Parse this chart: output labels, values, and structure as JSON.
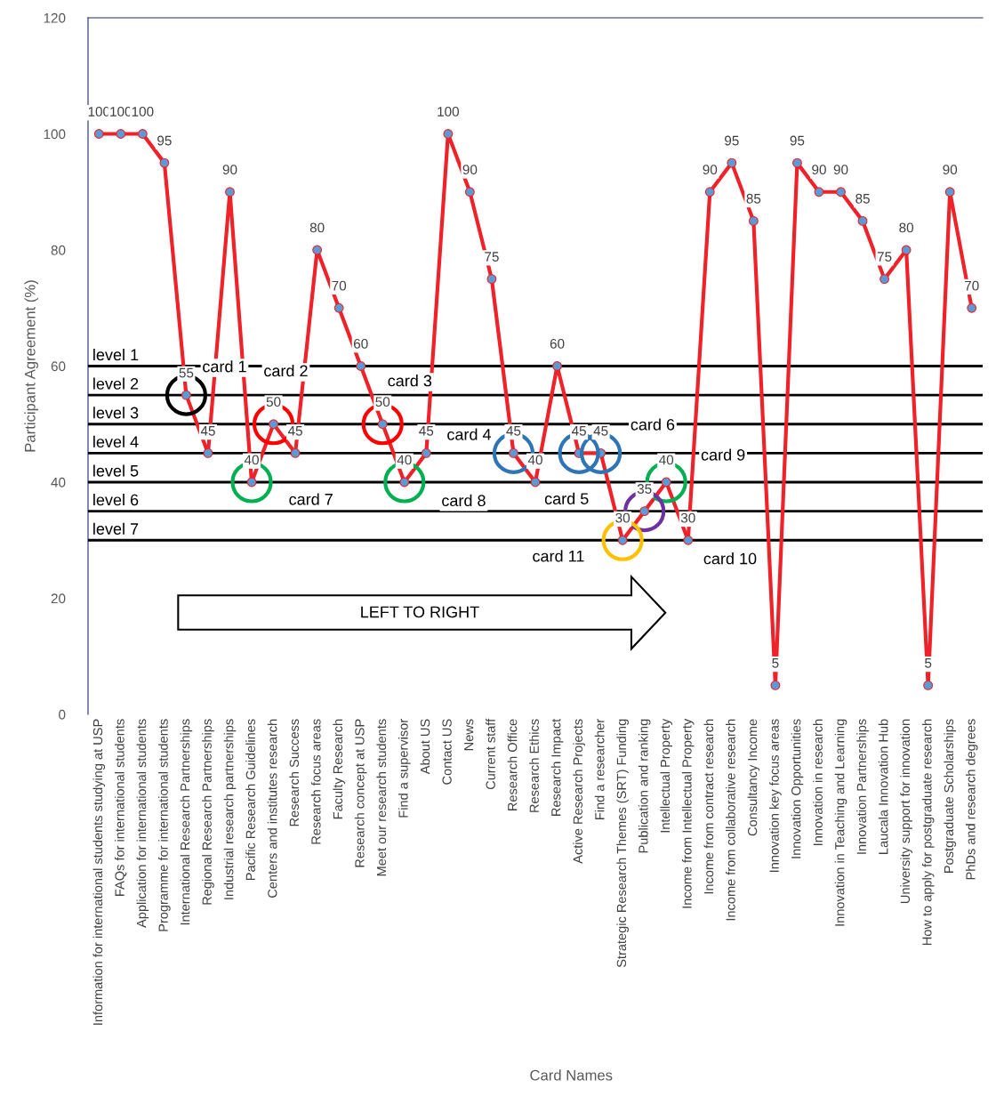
{
  "chart_data": {
    "type": "line",
    "xlabel": "Card Names",
    "ylabel": "Participant Agreement (%)",
    "categories": [
      "Information for international students studying at USP",
      "FAQs for international students",
      "Application for international students",
      "Programme for international students",
      "International Research Partnerships",
      "Regional Research Partnerships",
      "Industrial research partnerships",
      "Pacific Research Guidelines",
      "Centers and institutes research",
      "Research Success",
      "Research focus areas",
      "Faculty Research",
      "Research concept at USP",
      "Meet our research students",
      "Find a supervisor",
      "About US",
      "Contact US",
      "News",
      "Current staff",
      "Research Office",
      "Research Ethics",
      "Research Impact",
      "Active Research Projects",
      "Find a researcher",
      "Strategic Research Themes (SRT) Funding",
      "Publication and ranking",
      "Intellectual Property",
      "Income from Intellectual Property",
      "Income from contract research",
      "Income from collaborative research",
      "Consultancy Income",
      "Innovation key focus areas",
      "Innovation Opportunities",
      "Innovation in research",
      "Innovation in Teaching and Learning",
      "Innovation Partnerships",
      "Laucala Innovation Hub",
      "University support for innovation",
      "How to apply for postgraduate research",
      "Postgraduate Scholarships",
      "PhDs and research degrees"
    ],
    "series": [
      {
        "color": "#ee2228",
        "values": [
          100,
          100,
          100,
          95,
          55,
          45,
          90,
          40,
          50,
          45,
          80,
          70,
          60,
          50,
          40,
          45,
          100,
          90,
          75,
          45,
          40,
          60,
          45,
          45,
          30,
          35,
          40,
          30,
          90,
          95,
          85,
          5,
          95,
          90,
          90,
          85,
          75,
          80,
          5,
          90,
          70
        ]
      }
    ],
    "ylim": [
      0,
      120
    ],
    "yticks": [
      0,
      20,
      40,
      60,
      80,
      100,
      120
    ],
    "grid": false,
    "marker": "circle",
    "line_style": "solid",
    "data_labels": true,
    "ref_lines": [
      {
        "axis": "y",
        "value": 60,
        "label": "level 1",
        "color": "#000000"
      },
      {
        "axis": "y",
        "value": 55,
        "label": "level 2",
        "color": "#000000"
      },
      {
        "axis": "y",
        "value": 50,
        "label": "level 3",
        "color": "#000000"
      },
      {
        "axis": "y",
        "value": 45,
        "label": "level 4",
        "color": "#000000"
      },
      {
        "axis": "y",
        "value": 40,
        "label": "level 5",
        "color": "#000000"
      },
      {
        "axis": "y",
        "value": 35,
        "label": "level 6",
        "color": "#000000"
      },
      {
        "axis": "y",
        "value": 30,
        "label": "level 7",
        "color": "#000000"
      }
    ],
    "annotations": [
      {
        "text": "card 1",
        "x": "International Research Partnerships",
        "y": 55
      },
      {
        "text": "card 2",
        "x": "Centers and institutes research",
        "y": 50
      },
      {
        "text": "card 3",
        "x": "Meet our research students",
        "y": 50
      },
      {
        "text": "card 4",
        "x": "Research Office",
        "y": 45
      },
      {
        "text": "card 5",
        "x": "Active Research Projects",
        "y": 45
      },
      {
        "text": "card 6",
        "x": "Find a researcher",
        "y": 45
      },
      {
        "text": "card 7",
        "x": "Pacific Research Guidelines",
        "y": 40
      },
      {
        "text": "card 8",
        "x": "Find a supervisor",
        "y": 40
      },
      {
        "text": "card 9",
        "x": "Intellectual Property",
        "y": 40
      },
      {
        "text": "card 10",
        "x": "Income from Intellectual Property",
        "y": 30
      },
      {
        "text": "card 11",
        "x": "Strategic Research Themes (SRT) Funding",
        "y": 30
      },
      "LEFT TO RIGHT"
    ]
  }
}
